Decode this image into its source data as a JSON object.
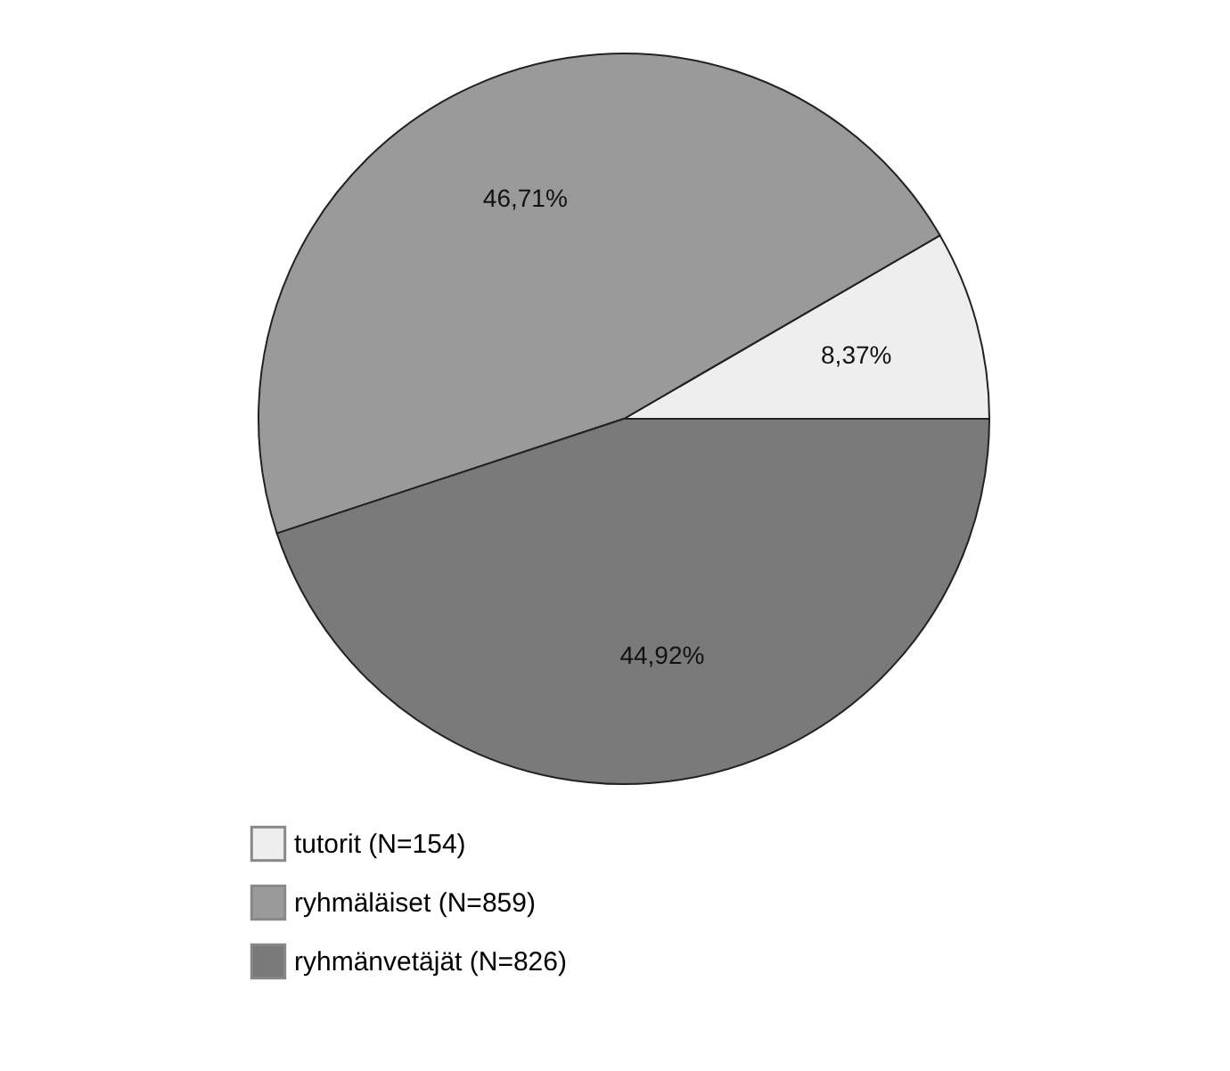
{
  "chart_data": {
    "type": "pie",
    "categories": [
      "tutorit (N=154)",
      "ryhmäläiset (N=859)",
      "ryhmänvetäjät (N=826)"
    ],
    "values": [
      8.37,
      46.71,
      44.92
    ],
    "value_labels": [
      "8,37%",
      "46,71%",
      "44,92%"
    ],
    "colors": [
      "#eeeeee",
      "#9a9a9a",
      "#7a7a7a"
    ],
    "legend": "bottom"
  }
}
